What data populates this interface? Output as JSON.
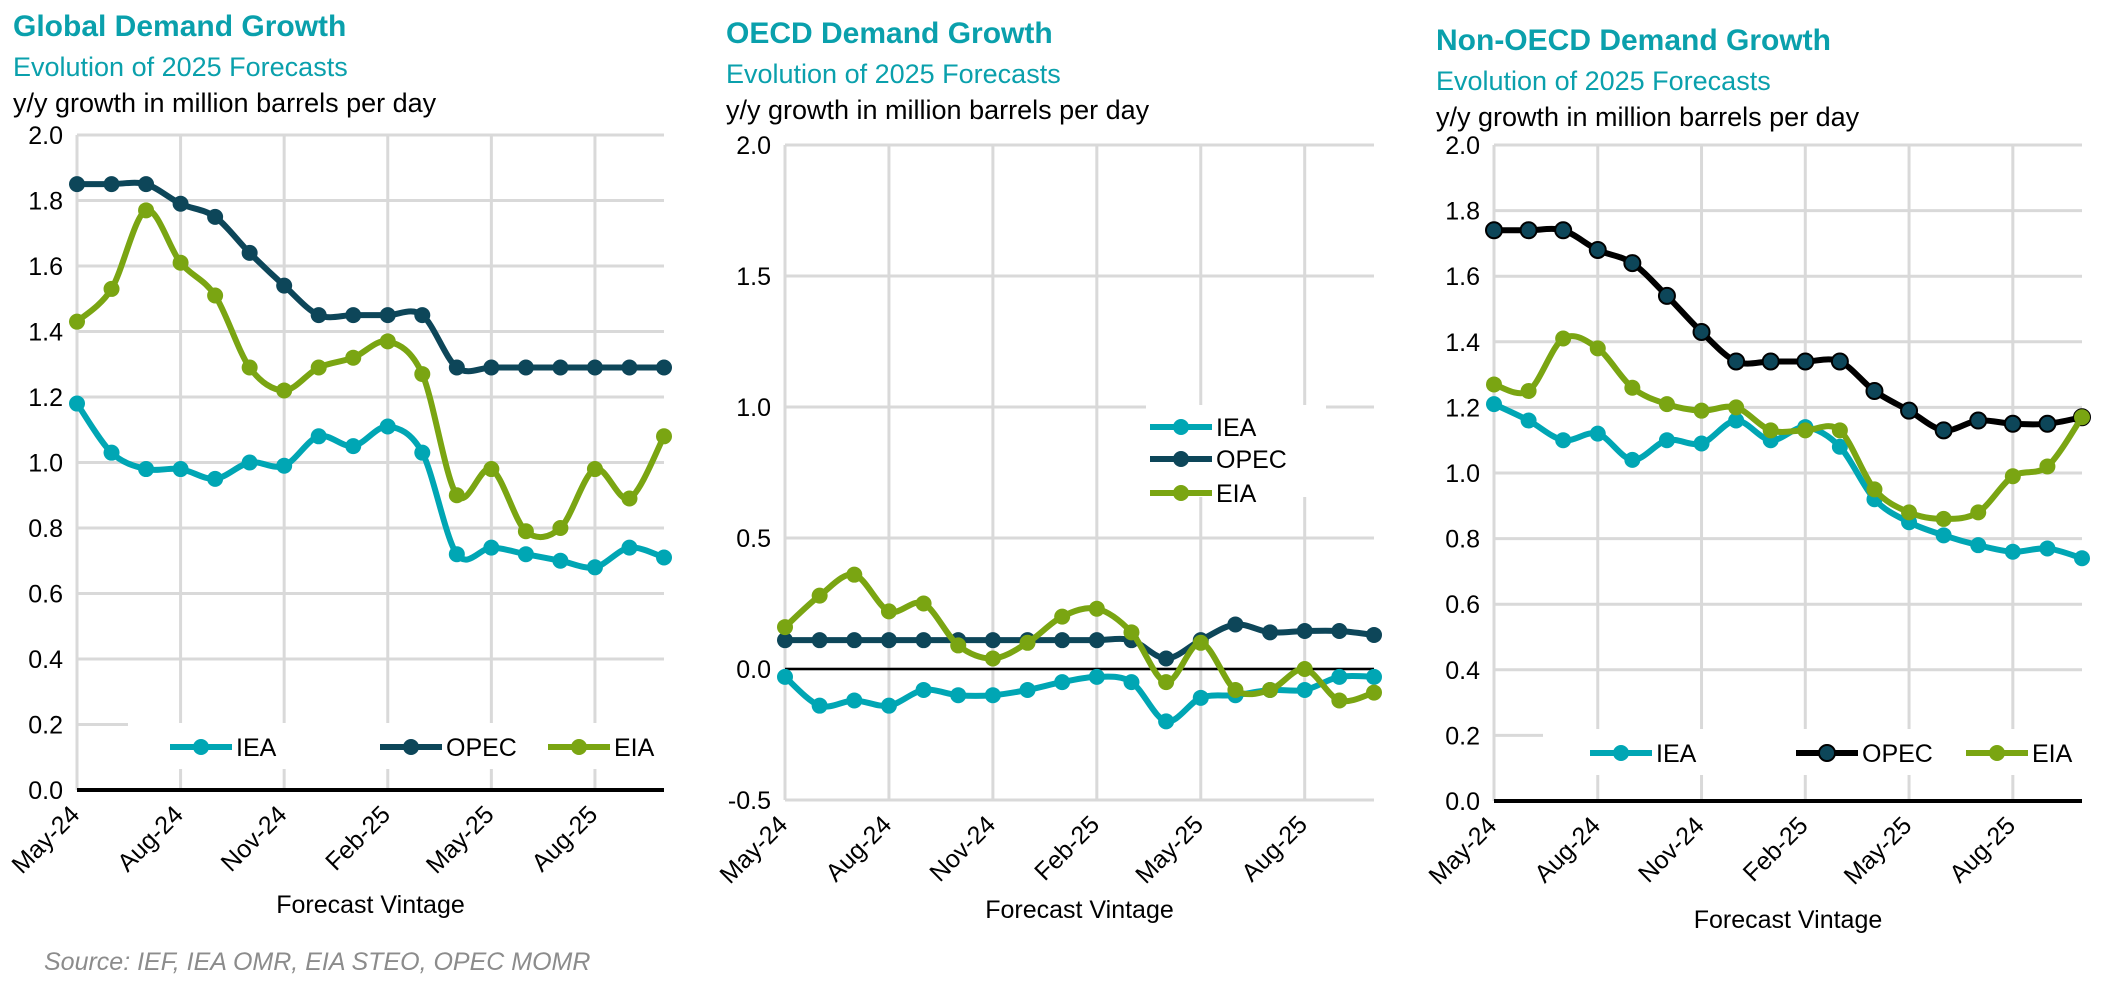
{
  "source": "Source: IEF, IEA OMR, EIA STEO, OPEC MOMR",
  "colors": {
    "IEA": "#00a6b4",
    "OPEC": "#0d4659",
    "EIA": "#7aa512",
    "title": "#0aa0ac",
    "grid": "#d9d9d9"
  },
  "chart_data": [
    {
      "type": "line",
      "title": "Global Demand Growth",
      "subtitle": "Evolution of 2025 Forecasts",
      "ylabel": "y/y growth in million barrels per day",
      "xlabel": "Forecast Vintage",
      "x": [
        "May-24",
        "Jun-24",
        "Jul-24",
        "Aug-24",
        "Sep-24",
        "Oct-24",
        "Nov-24",
        "Dec-24",
        "Jan-25",
        "Feb-25",
        "Mar-25",
        "Apr-25",
        "May-25",
        "Jun-25",
        "Jul-25",
        "Aug-25",
        "Sep-25",
        "Oct-25"
      ],
      "xticks": [
        "May-24",
        "Aug-24",
        "Nov-24",
        "Feb-25",
        "May-25",
        "Aug-25"
      ],
      "ylim": [
        0,
        2.0
      ],
      "yticks": [
        "0.0",
        "0.2",
        "0.4",
        "0.6",
        "0.8",
        "1.0",
        "1.2",
        "1.4",
        "1.6",
        "1.8",
        "2.0"
      ],
      "grid": true,
      "legend": "bottom",
      "series": [
        {
          "name": "IEA",
          "values": [
            1.18,
            1.03,
            0.98,
            0.98,
            0.95,
            1.0,
            0.99,
            1.08,
            1.05,
            1.11,
            1.03,
            0.72,
            0.74,
            0.72,
            0.7,
            0.68,
            0.74,
            0.71
          ]
        },
        {
          "name": "OPEC",
          "values": [
            1.85,
            1.85,
            1.85,
            1.79,
            1.75,
            1.64,
            1.54,
            1.45,
            1.45,
            1.45,
            1.45,
            1.29,
            1.29,
            1.29,
            1.29,
            1.29,
            1.29,
            1.29
          ]
        },
        {
          "name": "EIA",
          "values": [
            1.43,
            1.53,
            1.77,
            1.61,
            1.51,
            1.29,
            1.22,
            1.29,
            1.32,
            1.37,
            1.27,
            0.9,
            0.98,
            0.79,
            0.8,
            0.98,
            0.89,
            1.08
          ]
        }
      ]
    },
    {
      "type": "line",
      "title": "OECD Demand Growth",
      "subtitle": "Evolution of 2025 Forecasts",
      "ylabel": "y/y growth in million barrels per day",
      "xlabel": "Forecast Vintage",
      "x": [
        "May-24",
        "Jun-24",
        "Jul-24",
        "Aug-24",
        "Sep-24",
        "Oct-24",
        "Nov-24",
        "Dec-24",
        "Jan-25",
        "Feb-25",
        "Mar-25",
        "Apr-25",
        "May-25",
        "Jun-25",
        "Jul-25",
        "Aug-25",
        "Sep-25",
        "Oct-25"
      ],
      "xticks": [
        "May-24",
        "Aug-24",
        "Nov-24",
        "Feb-25",
        "May-25",
        "Aug-25"
      ],
      "ylim": [
        -0.5,
        2.0
      ],
      "yticks": [
        "-0.5",
        "0.0",
        "0.5",
        "1.0",
        "1.5",
        "2.0"
      ],
      "grid": true,
      "legend": "right",
      "series": [
        {
          "name": "IEA",
          "values": [
            -0.03,
            -0.14,
            -0.12,
            -0.14,
            -0.08,
            -0.1,
            -0.1,
            -0.08,
            -0.05,
            -0.03,
            -0.05,
            -0.2,
            -0.11,
            -0.1,
            -0.08,
            -0.08,
            -0.03,
            -0.03
          ]
        },
        {
          "name": "OPEC",
          "values": [
            0.11,
            0.11,
            0.11,
            0.11,
            0.11,
            0.11,
            0.11,
            0.11,
            0.11,
            0.11,
            0.11,
            0.04,
            0.11,
            0.17,
            0.14,
            0.145,
            0.145,
            0.13
          ]
        },
        {
          "name": "EIA",
          "values": [
            0.16,
            0.28,
            0.36,
            0.22,
            0.25,
            0.09,
            0.04,
            0.1,
            0.2,
            0.23,
            0.14,
            -0.05,
            0.1,
            -0.08,
            -0.08,
            0.0,
            -0.12,
            -0.09
          ]
        }
      ]
    },
    {
      "type": "line",
      "title": "Non-OECD Demand Growth",
      "subtitle": "Evolution of 2025 Forecasts",
      "ylabel": "y/y growth in million barrels per day",
      "xlabel": "Forecast Vintage",
      "x": [
        "May-24",
        "Jun-24",
        "Jul-24",
        "Aug-24",
        "Sep-24",
        "Oct-24",
        "Nov-24",
        "Dec-24",
        "Jan-25",
        "Feb-25",
        "Mar-25",
        "Apr-25",
        "May-25",
        "Jun-25",
        "Jul-25",
        "Aug-25",
        "Sep-25",
        "Oct-25"
      ],
      "xticks": [
        "May-24",
        "Aug-24",
        "Nov-24",
        "Feb-25",
        "May-25",
        "Aug-25"
      ],
      "ylim": [
        0,
        2.0
      ],
      "yticks": [
        "0.0",
        "0.2",
        "0.4",
        "0.6",
        "0.8",
        "1.0",
        "1.2",
        "1.4",
        "1.6",
        "1.8",
        "2.0"
      ],
      "grid": true,
      "legend": "bottom",
      "opec_line_color": "#000000",
      "series": [
        {
          "name": "IEA",
          "values": [
            1.21,
            1.16,
            1.1,
            1.12,
            1.04,
            1.1,
            1.09,
            1.16,
            1.1,
            1.14,
            1.08,
            0.92,
            0.85,
            0.81,
            0.78,
            0.76,
            0.77,
            0.74
          ]
        },
        {
          "name": "OPEC",
          "values": [
            1.74,
            1.74,
            1.74,
            1.68,
            1.64,
            1.54,
            1.43,
            1.34,
            1.34,
            1.34,
            1.34,
            1.25,
            1.19,
            1.13,
            1.16,
            1.15,
            1.15,
            1.17
          ]
        },
        {
          "name": "EIA",
          "values": [
            1.27,
            1.25,
            1.41,
            1.38,
            1.26,
            1.21,
            1.19,
            1.2,
            1.13,
            1.13,
            1.13,
            0.95,
            0.88,
            0.86,
            0.88,
            0.99,
            1.02,
            1.17
          ]
        }
      ]
    }
  ]
}
